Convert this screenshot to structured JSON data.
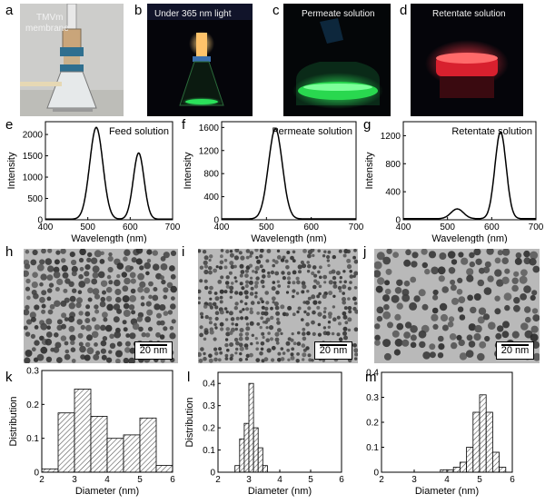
{
  "labels": {
    "a": "a",
    "b": "b",
    "c": "c",
    "d": "d",
    "e": "e",
    "f": "f",
    "g": "g",
    "h": "h",
    "i": "i",
    "j": "j",
    "k": "k",
    "l": "l",
    "m": "m"
  },
  "photos": {
    "a": {
      "caption": "TMVm\nmembrane",
      "caption_l1": "TMVm",
      "caption_l2": "membrane"
    },
    "b": {
      "caption": "Under 365 nm light"
    },
    "c": {
      "caption": "Permeate solution"
    },
    "d": {
      "caption": "Retentate solution"
    }
  },
  "tem": {
    "scale_label": "20 nm"
  },
  "colors": {
    "line": "#000000",
    "bar_fill": "#ffffff",
    "hatch": "#555555",
    "photo_a_bg": "#cfcfcd",
    "photo_dark": "#06060c",
    "green_glow": "#22e04a",
    "red_glow": "#ff2a3a",
    "orange_glow": "#ffb24a",
    "tem_bg": "#b9b9b9"
  },
  "chart_data": [
    {
      "id": "e",
      "type": "line",
      "title": "Feed solution",
      "xlabel": "Wavelength (nm)",
      "ylabel": "Intensity",
      "xlim": [
        400,
        700
      ],
      "ylim": [
        0,
        2300
      ],
      "xticks": [
        400,
        500,
        600,
        700
      ],
      "yticks": [
        0,
        500,
        1000,
        1500,
        2000
      ],
      "peaks": [
        {
          "center": 520,
          "height": 2150,
          "width": 22
        },
        {
          "center": 620,
          "height": 1550,
          "width": 18
        }
      ]
    },
    {
      "id": "f",
      "type": "line",
      "title": "Permeate solution",
      "xlabel": "Wavelength (nm)",
      "ylabel": "Intensity",
      "xlim": [
        400,
        700
      ],
      "ylim": [
        0,
        1700
      ],
      "xticks": [
        400,
        500,
        600,
        700
      ],
      "yticks": [
        0,
        400,
        800,
        1200,
        1600
      ],
      "peaks": [
        {
          "center": 520,
          "height": 1560,
          "width": 22
        }
      ]
    },
    {
      "id": "g",
      "type": "line",
      "title": "Retentate solution",
      "xlabel": "Wavelength (nm)",
      "ylabel": "Intensity",
      "xlim": [
        400,
        700
      ],
      "ylim": [
        0,
        1400
      ],
      "xticks": [
        400,
        500,
        600,
        700
      ],
      "yticks": [
        0,
        400,
        800,
        1200
      ],
      "peaks": [
        {
          "center": 522,
          "height": 140,
          "width": 20
        },
        {
          "center": 620,
          "height": 1240,
          "width": 18
        }
      ]
    },
    {
      "id": "k",
      "type": "bar",
      "xlabel": "Diameter (nm)",
      "ylabel": "Distribution",
      "xlim": [
        2,
        6
      ],
      "ylim": [
        0,
        0.3
      ],
      "xticks": [
        2,
        3,
        4,
        5,
        6
      ],
      "yticks": [
        0.0,
        0.1,
        0.2,
        0.3
      ],
      "bin_width": 0.5,
      "bins": [
        2.0,
        2.5,
        3.0,
        3.5,
        4.0,
        4.5,
        5.0,
        5.5
      ],
      "values": [
        0.01,
        0.175,
        0.245,
        0.165,
        0.1,
        0.11,
        0.16,
        0.02
      ]
    },
    {
      "id": "l",
      "type": "bar",
      "xlabel": "Diameter (nm)",
      "ylabel": "Distribution",
      "xlim": [
        2,
        6
      ],
      "ylim": [
        0,
        0.45
      ],
      "xticks": [
        2,
        3,
        4,
        5,
        6
      ],
      "yticks": [
        0.0,
        0.1,
        0.2,
        0.3,
        0.4
      ],
      "bin_width": 0.15,
      "bins": [
        2.55,
        2.7,
        2.85,
        3.0,
        3.15,
        3.3,
        3.45
      ],
      "values": [
        0.03,
        0.15,
        0.22,
        0.4,
        0.2,
        0.11,
        0.03
      ]
    },
    {
      "id": "m",
      "type": "bar",
      "xlabel": "Diameter (nm)",
      "ylabel": "Distribution",
      "xlim": [
        2,
        6
      ],
      "ylim": [
        0,
        0.4
      ],
      "xticks": [
        2,
        3,
        4,
        5,
        6
      ],
      "yticks": [
        0.0,
        0.1,
        0.2,
        0.3,
        0.4
      ],
      "bin_width": 0.2,
      "bins": [
        3.8,
        4.0,
        4.2,
        4.4,
        4.6,
        4.8,
        5.0,
        5.2,
        5.4,
        5.6
      ],
      "values": [
        0.01,
        0.01,
        0.02,
        0.04,
        0.1,
        0.24,
        0.31,
        0.24,
        0.08,
        0.02
      ]
    }
  ]
}
